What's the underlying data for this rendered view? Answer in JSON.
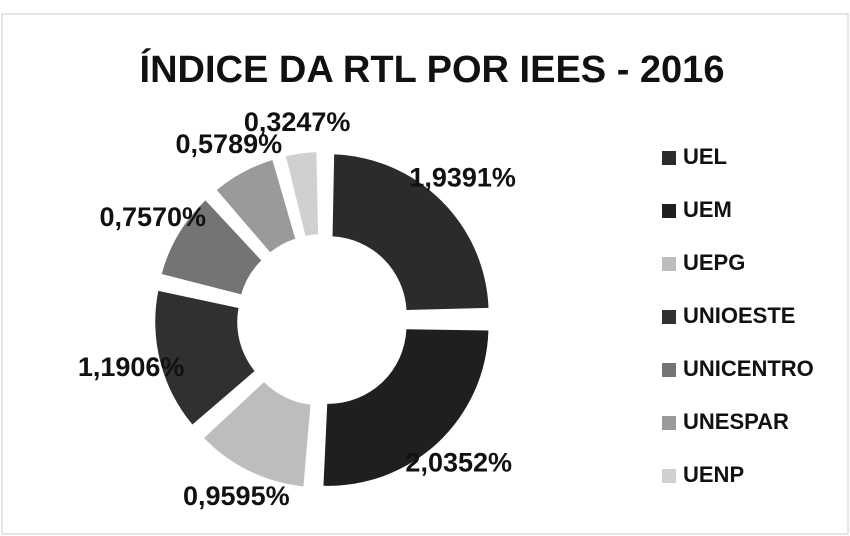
{
  "chart_data": {
    "type": "donut",
    "title": "ÍNDICE DA RTL POR IEES - 2016",
    "categories": [
      "UEL",
      "UEM",
      "UEPG",
      "UNIOESTE",
      "UNICENTRO",
      "UNESPAR",
      "UENP"
    ],
    "values": [
      1.9391,
      2.0352,
      0.9595,
      1.1906,
      0.757,
      0.5789,
      0.3247
    ],
    "value_labels": [
      "1,9391%",
      "2,0352%",
      "0,9595%",
      "1,1906%",
      "0,7570%",
      "0,5789%",
      "0,3247%"
    ],
    "colors": [
      "#2b2b2b",
      "#1f1f1f",
      "#bdbdbd",
      "#303030",
      "#747474",
      "#9a9a9a",
      "#d0d0d0"
    ],
    "legend": "right"
  }
}
